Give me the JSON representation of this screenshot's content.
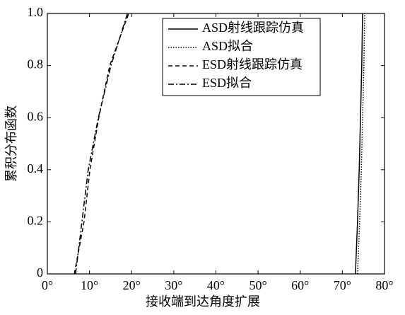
{
  "chart_data": {
    "type": "line",
    "xlabel": "接收端到达角度扩展",
    "ylabel": "累积分布函数",
    "xlim": [
      0,
      80
    ],
    "ylim": [
      0,
      1
    ],
    "xticks": [
      {
        "value": 0,
        "label": "0°"
      },
      {
        "value": 10,
        "label": "10°"
      },
      {
        "value": 20,
        "label": "20°"
      },
      {
        "value": 30,
        "label": "30°"
      },
      {
        "value": 40,
        "label": "40°"
      },
      {
        "value": 50,
        "label": "50°"
      },
      {
        "value": 60,
        "label": "60°"
      },
      {
        "value": 70,
        "label": "70°"
      },
      {
        "value": 80,
        "label": "80°"
      }
    ],
    "yticks": [
      0,
      0.2,
      0.4,
      0.6,
      0.8,
      {
        "value": 1,
        "label": "1.0"
      }
    ],
    "legend": "upper right",
    "series": [
      {
        "name": "ASD射线跟踪仿真",
        "color": "#000000",
        "linestyle": "solid",
        "x": [
          73.1,
          73.6,
          74.0,
          74.3,
          74.6,
          74.8
        ],
        "values": [
          0,
          0.2,
          0.4,
          0.6,
          0.8,
          1
        ]
      },
      {
        "name": "ASD拟合",
        "color": "#000000",
        "linestyle": "dotted",
        "x": [
          73.6,
          74.1,
          74.5,
          74.8,
          75.1,
          75.3
        ],
        "values": [
          0,
          0.2,
          0.4,
          0.6,
          0.8,
          1
        ]
      },
      {
        "name": "ESD射线跟踪仿真",
        "color": "#000000",
        "linestyle": "dashed",
        "x": [
          6.4,
          8.7,
          10.1,
          12.2,
          14.8,
          19.3
        ],
        "values": [
          0,
          0.2,
          0.4,
          0.6,
          0.8,
          1
        ]
      },
      {
        "name": "ESD拟合",
        "color": "#000000",
        "linestyle": "dashdot",
        "x": [
          6.7,
          8.2,
          9.7,
          12.1,
          15.1,
          19.0
        ],
        "values": [
          0,
          0.2,
          0.4,
          0.6,
          0.8,
          1
        ]
      }
    ]
  }
}
